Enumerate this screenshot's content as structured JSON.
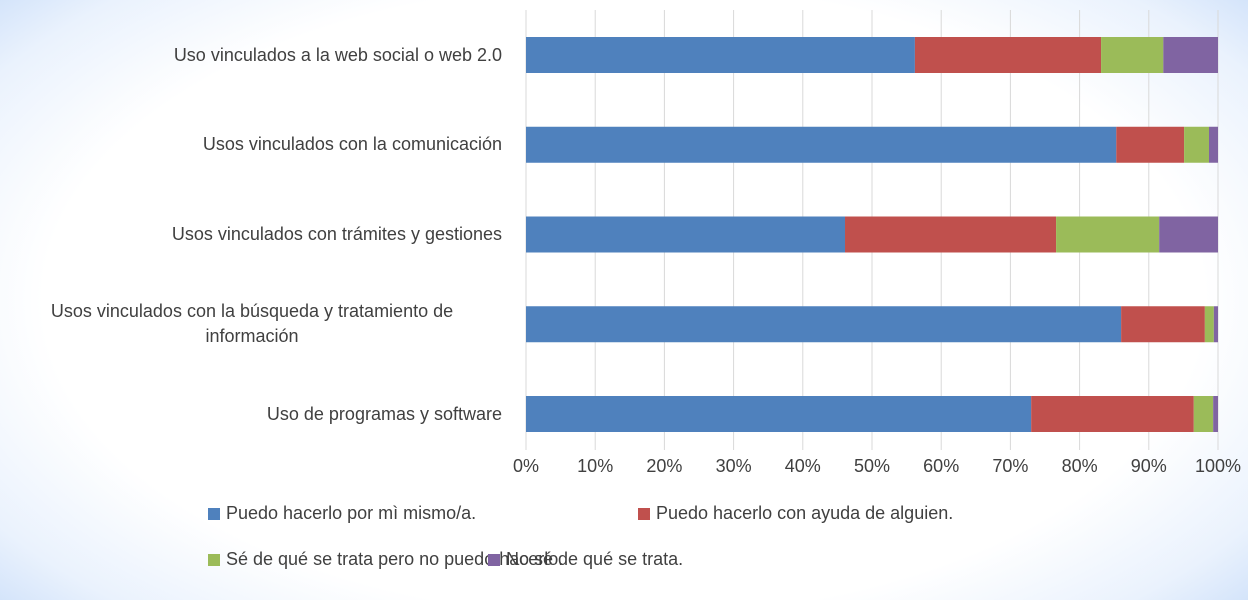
{
  "chart_data": {
    "type": "stacked_bar_horizontal",
    "categories": [
      "Uso vinculados a la web social o web 2.0",
      "Usos vinculados con la comunicación",
      "Usos vinculados con trámites y gestiones",
      "Usos vinculados con la búsqueda y tratamiento de información",
      "Uso de programas y software"
    ],
    "series": [
      {
        "name": "Puedo hacerlo por mì mismo/a.",
        "color": "#4f81bd",
        "values": [
          56.2,
          85.3,
          46.1,
          86.0,
          73.0
        ]
      },
      {
        "name": "Puedo hacerlo con ayuda de alguien.",
        "color": "#c0504d",
        "values": [
          26.9,
          9.8,
          30.5,
          12.1,
          23.5
        ]
      },
      {
        "name": "Sé de qué se trata pero no puedo hacerlo.",
        "color": "#9bbb59",
        "values": [
          9.0,
          3.6,
          14.9,
          1.3,
          2.8
        ]
      },
      {
        "name": "No sé de qué se trata.",
        "color": "#8064a2",
        "values": [
          7.9,
          1.3,
          8.5,
          0.6,
          0.7
        ]
      }
    ],
    "xlim": [
      0,
      100
    ],
    "xticks": [
      {
        "value": 0,
        "label": "0%"
      },
      {
        "value": 10,
        "label": "10%"
      },
      {
        "value": 20,
        "label": "20%"
      },
      {
        "value": 30,
        "label": "30%"
      },
      {
        "value": 40,
        "label": "40%"
      },
      {
        "value": 50,
        "label": "50%"
      },
      {
        "value": 60,
        "label": "60%"
      },
      {
        "value": 70,
        "label": "70%"
      },
      {
        "value": 80,
        "label": "80%"
      },
      {
        "value": 90,
        "label": "90%"
      },
      {
        "value": 100,
        "label": "100%"
      }
    ],
    "grid": true,
    "legend": "bottom"
  }
}
